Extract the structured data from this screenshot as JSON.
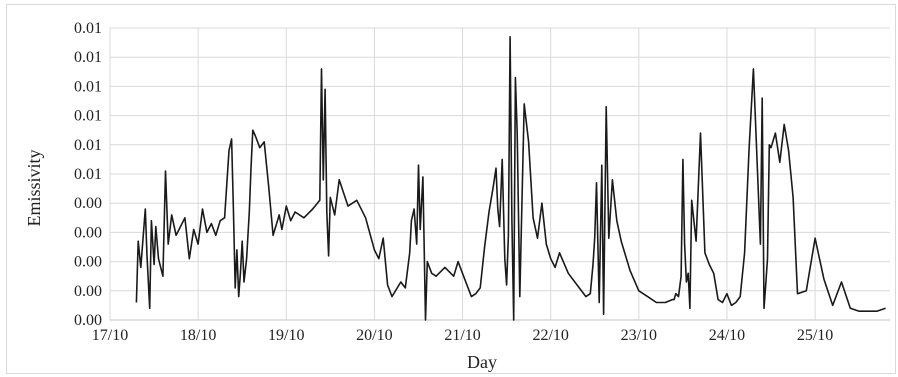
{
  "chart_data": {
    "type": "line",
    "title": "",
    "xlabel": "Day",
    "ylabel": "Emissivity",
    "y_tick_labels": [
      "0.00",
      "0.00",
      "0.00",
      "0.00",
      "0.00",
      "0.01",
      "0.01",
      "0.01",
      "0.01",
      "0.01",
      "0.01"
    ],
    "x_tick_labels": [
      "17/10",
      "18/10",
      "19/10",
      "20/10",
      "21/10",
      "22/10",
      "23/10",
      "24/10",
      "25/10"
    ],
    "xlim": [
      0,
      8.85
    ],
    "ylim": [
      0,
      10
    ],
    "grid": true,
    "legend": "none",
    "series": [
      {
        "color": "#1a1a1a",
        "x": [
          0.3,
          0.32,
          0.35,
          0.4,
          0.42,
          0.45,
          0.47,
          0.5,
          0.52,
          0.55,
          0.6,
          0.63,
          0.66,
          0.7,
          0.75,
          0.8,
          0.85,
          0.9,
          0.95,
          1.0,
          1.05,
          1.1,
          1.15,
          1.2,
          1.25,
          1.3,
          1.35,
          1.38,
          1.4,
          1.42,
          1.44,
          1.46,
          1.48,
          1.5,
          1.52,
          1.55,
          1.58,
          1.6,
          1.62,
          1.65,
          1.7,
          1.75,
          1.8,
          1.85,
          1.88,
          1.9,
          1.92,
          1.95,
          2.0,
          2.05,
          2.1,
          2.2,
          2.3,
          2.38,
          2.4,
          2.42,
          2.44,
          2.46,
          2.48,
          2.5,
          2.55,
          2.6,
          2.7,
          2.8,
          2.9,
          3.0,
          3.05,
          3.1,
          3.15,
          3.2,
          3.3,
          3.35,
          3.4,
          3.42,
          3.45,
          3.48,
          3.5,
          3.52,
          3.55,
          3.58,
          3.6,
          3.65,
          3.7,
          3.8,
          3.9,
          3.95,
          4.0,
          4.1,
          4.15,
          4.2,
          4.25,
          4.3,
          4.35,
          4.38,
          4.4,
          4.42,
          4.45,
          4.48,
          4.5,
          4.52,
          4.54,
          4.56,
          4.58,
          4.6,
          4.62,
          4.65,
          4.7,
          4.75,
          4.8,
          4.85,
          4.9,
          4.95,
          5.0,
          5.05,
          5.1,
          5.2,
          5.3,
          5.4,
          5.45,
          5.48,
          5.5,
          5.52,
          5.55,
          5.58,
          5.6,
          5.63,
          5.66,
          5.7,
          5.75,
          5.8,
          5.9,
          6.0,
          6.1,
          6.2,
          6.3,
          6.38,
          6.4,
          6.42,
          6.45,
          6.48,
          6.5,
          6.52,
          6.54,
          6.56,
          6.58,
          6.6,
          6.65,
          6.7,
          6.75,
          6.8,
          6.85,
          6.9,
          6.95,
          7.0,
          7.05,
          7.1,
          7.15,
          7.2,
          7.25,
          7.3,
          7.38,
          7.4,
          7.42,
          7.44,
          7.46,
          7.48,
          7.5,
          7.55,
          7.6,
          7.65,
          7.7,
          7.75,
          7.8,
          7.9,
          8.0,
          8.1,
          8.2,
          8.3,
          8.4,
          8.5,
          8.6,
          8.7,
          8.8
        ],
        "y": [
          0.6,
          2.7,
          1.8,
          3.8,
          2.2,
          0.4,
          3.4,
          1.9,
          3.2,
          2.1,
          1.5,
          5.1,
          2.6,
          3.6,
          2.9,
          3.2,
          3.5,
          2.1,
          3.1,
          2.6,
          3.8,
          3.0,
          3.3,
          2.9,
          3.4,
          3.5,
          5.8,
          6.2,
          3.8,
          1.1,
          2.4,
          0.8,
          1.6,
          2.7,
          1.3,
          2.1,
          3.7,
          5.2,
          6.5,
          6.3,
          5.9,
          6.1,
          4.6,
          2.9,
          3.2,
          3.4,
          3.6,
          3.1,
          3.9,
          3.4,
          3.7,
          3.5,
          3.8,
          4.1,
          8.6,
          4.8,
          7.9,
          3.7,
          2.2,
          4.2,
          3.6,
          4.8,
          3.9,
          4.1,
          3.5,
          2.4,
          2.1,
          2.8,
          1.2,
          0.8,
          1.3,
          1.1,
          2.3,
          3.4,
          3.8,
          2.6,
          5.3,
          3.1,
          4.9,
          0.0,
          2.0,
          1.6,
          1.5,
          1.8,
          1.5,
          2.0,
          1.6,
          0.8,
          0.9,
          1.1,
          2.5,
          3.7,
          4.6,
          5.2,
          3.8,
          3.2,
          5.5,
          2.1,
          1.2,
          2.9,
          9.7,
          3.4,
          0.0,
          8.3,
          6.4,
          0.8,
          7.4,
          6.1,
          3.5,
          2.8,
          4.0,
          2.6,
          2.1,
          1.8,
          2.3,
          1.6,
          1.2,
          0.8,
          0.9,
          1.9,
          2.8,
          4.7,
          0.6,
          5.3,
          0.2,
          7.3,
          2.8,
          4.8,
          3.4,
          2.7,
          1.7,
          1.0,
          0.8,
          0.6,
          0.6,
          0.7,
          0.7,
          0.9,
          0.8,
          1.5,
          5.5,
          2.6,
          1.3,
          1.6,
          0.4,
          4.1,
          2.7,
          6.4,
          2.3,
          1.9,
          1.6,
          0.7,
          0.6,
          0.9,
          0.5,
          0.6,
          0.8,
          2.3,
          5.8,
          8.6,
          2.6,
          7.6,
          0.4,
          1.2,
          2.1,
          6.0,
          5.9,
          6.4,
          5.4,
          6.7,
          5.8,
          4.2,
          0.9,
          1.0,
          2.8,
          1.4,
          0.5,
          1.3,
          0.4,
          0.3,
          0.3,
          0.3,
          0.4
        ]
      }
    ]
  }
}
